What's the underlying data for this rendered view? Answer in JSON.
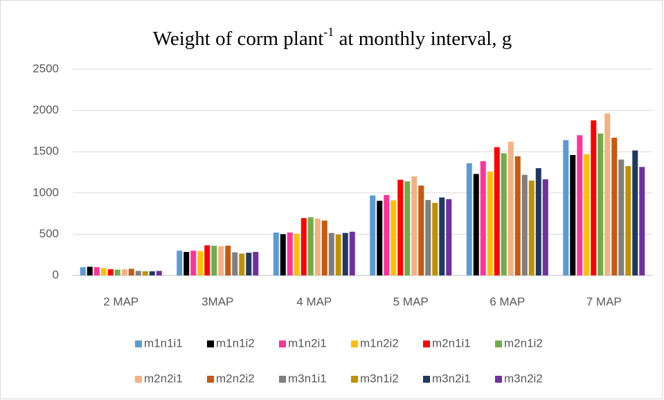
{
  "chart_data": {
    "type": "bar",
    "title": [
      "Weight of corm  plant",
      "-1",
      " at monthly interval, g"
    ],
    "categories": [
      "2 MAP",
      "3MAP",
      "4 MAP",
      "5 MAP",
      "6 MAP",
      "7 MAP"
    ],
    "ylim": [
      0,
      2500
    ],
    "yticks": [
      0,
      500,
      1000,
      1500,
      2000,
      2500
    ],
    "grid": true,
    "legend": "bottom",
    "series": [
      {
        "name": "m1n1i1",
        "color": "#5b9bd5",
        "values": [
          100,
          300,
          520,
          970,
          1360,
          1640
        ]
      },
      {
        "name": "m1n1i2",
        "color": "#000000",
        "values": [
          105,
          285,
          500,
          905,
          1230,
          1460
        ]
      },
      {
        "name": "m1n2i1",
        "color": "#ff3399",
        "values": [
          100,
          300,
          520,
          975,
          1385,
          1700
        ]
      },
      {
        "name": "m1n2i2",
        "color": "#ffc000",
        "values": [
          90,
          295,
          505,
          910,
          1260,
          1470
        ]
      },
      {
        "name": "m2n1i1",
        "color": "#ff0000",
        "values": [
          75,
          365,
          695,
          1160,
          1555,
          1880
        ]
      },
      {
        "name": "m2n1i2",
        "color": "#70ad47",
        "values": [
          70,
          360,
          705,
          1140,
          1480,
          1720
        ]
      },
      {
        "name": "m2n2i1",
        "color": "#f4b183",
        "values": [
          75,
          355,
          690,
          1200,
          1620,
          1965
        ]
      },
      {
        "name": "m2n2i2",
        "color": "#c55a11",
        "values": [
          80,
          360,
          665,
          1090,
          1445,
          1670
        ]
      },
      {
        "name": "m3n1i1",
        "color": "#7f7f7f",
        "values": [
          55,
          280,
          515,
          915,
          1220,
          1405
        ]
      },
      {
        "name": "m3n1i2",
        "color": "#bf9000",
        "values": [
          50,
          265,
          495,
          880,
          1150,
          1325
        ]
      },
      {
        "name": "m3n2i1",
        "color": "#203864",
        "values": [
          50,
          275,
          515,
          945,
          1300,
          1515
        ]
      },
      {
        "name": "m3n2i2",
        "color": "#7030a0",
        "values": [
          55,
          285,
          530,
          925,
          1165,
          1315
        ]
      }
    ]
  }
}
